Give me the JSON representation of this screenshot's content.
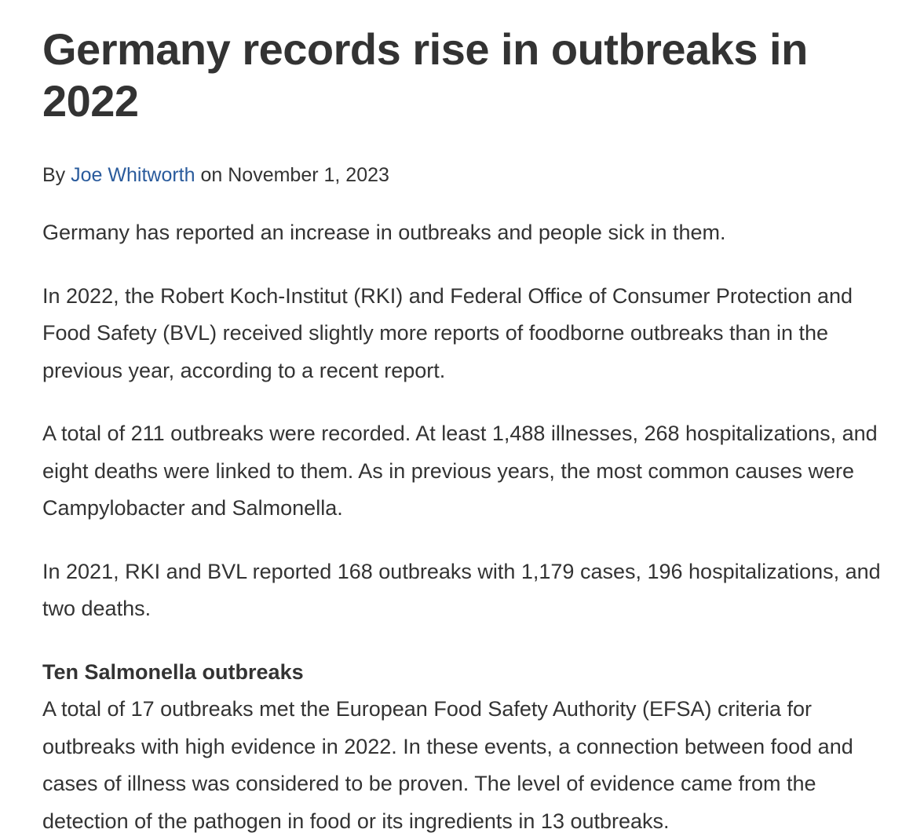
{
  "article": {
    "title": "Germany records rise in outbreaks in 2022",
    "byline": {
      "prefix": "By",
      "author": "Joe Whitworth",
      "date_prefix": "on",
      "date": "November 1, 2023"
    },
    "paragraphs": [
      "Germany has reported an increase in outbreaks and people sick in them.",
      "In 2022, the Robert Koch-Institut (RKI) and Federal Office of Consumer Protection and Food Safety (BVL) received slightly more reports of foodborne outbreaks than in the previous year, according to a recent report.",
      "A total of 211 outbreaks were recorded. At least 1,488 illnesses, 268 hospitalizations, and eight deaths were linked to them. As in previous years, the most common causes were Campylobacter and Salmonella.",
      "In 2021, RKI and BVL reported 168 outbreaks with 1,179 cases, 196 hospitalizations, and two deaths."
    ],
    "subheading": "Ten Salmonella outbreaks",
    "section_paragraph": "A total of 17 outbreaks met the European Food Safety Authority (EFSA) criteria for outbreaks with high evidence in 2022. In these events, a connection between food and cases of illness was considered to be proven. The level of evidence came from the detection of the pathogen in food or its ingredients in 13 outbreaks."
  },
  "colors": {
    "text": "#333333",
    "link": "#2a5b9c",
    "background": "#ffffff"
  }
}
